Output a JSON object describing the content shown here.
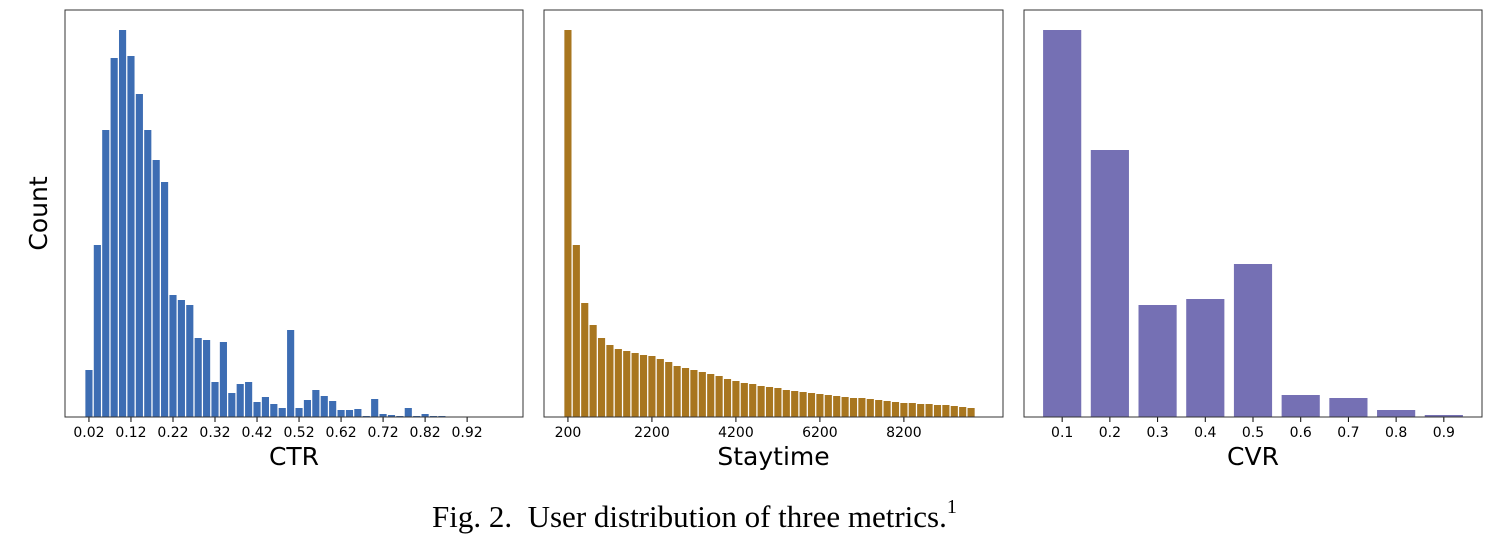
{
  "chart_data": [
    {
      "type": "histogram",
      "xlabel": "CTR",
      "ylabel": "Count",
      "color": "#3d6db3",
      "bins": [
        0.01,
        0.03,
        0.05,
        0.07,
        0.09,
        0.11,
        0.13,
        0.15,
        0.17,
        0.19,
        0.21,
        0.23,
        0.25,
        0.27,
        0.29,
        0.31,
        0.33,
        0.35,
        0.37,
        0.39,
        0.41,
        0.43,
        0.45,
        0.47,
        0.49,
        0.51,
        0.53,
        0.55,
        0.57,
        0.59,
        0.61,
        0.63,
        0.65,
        0.67,
        0.69,
        0.71,
        0.73,
        0.75,
        0.77,
        0.79,
        0.81,
        0.83,
        0.85,
        0.87,
        0.89,
        0.91
      ],
      "values": [
        47,
        172,
        287,
        359,
        387,
        361,
        323,
        287,
        257,
        235,
        122,
        117,
        112,
        79,
        77,
        35,
        75,
        24,
        33,
        35,
        15,
        20,
        13,
        9,
        87,
        9,
        17,
        27,
        21,
        16,
        7,
        7,
        8,
        1,
        18,
        3,
        2,
        1,
        9,
        1,
        3,
        1,
        1,
        0.5,
        0.5
      ],
      "xlim": [
        -0.037,
        1.053
      ],
      "ylim": [
        0,
        407
      ],
      "xticks": [
        0.02,
        0.12,
        0.22,
        0.32,
        0.42,
        0.52,
        0.62,
        0.72,
        0.82,
        0.92
      ]
    },
    {
      "type": "histogram",
      "xlabel": "Staytime",
      "color": "#a8761f",
      "bins": [
        100,
        300,
        500,
        700,
        900,
        1100,
        1300,
        1500,
        1700,
        1900,
        2100,
        2300,
        2500,
        2700,
        2900,
        3100,
        3300,
        3500,
        3700,
        3900,
        4100,
        4300,
        4500,
        4700,
        4900,
        5100,
        5300,
        5500,
        5700,
        5900,
        6100,
        6300,
        6500,
        6700,
        6900,
        7100,
        7300,
        7500,
        7700,
        7900,
        8100,
        8300,
        8500,
        8700,
        8900,
        9100,
        9300,
        9500,
        9700,
        9900
      ],
      "values": [
        387,
        172,
        114,
        92,
        79,
        72,
        68,
        66,
        64,
        62,
        61,
        58,
        55,
        51,
        49,
        47,
        45,
        43,
        41,
        38,
        36,
        34,
        33,
        31,
        30,
        29,
        27,
        26,
        25,
        24,
        23,
        22,
        21,
        20,
        19,
        19,
        18,
        17,
        16,
        15,
        14,
        14,
        13,
        13,
        12,
        12,
        11,
        10,
        9
      ],
      "xlim": [
        -370,
        10560
      ],
      "ylim": [
        0,
        407
      ],
      "xticks": [
        200,
        2200,
        4200,
        6200,
        8200
      ]
    },
    {
      "type": "bar",
      "xlabel": "CVR",
      "color": "#7570b4",
      "categories": [
        "0.1",
        "0.2",
        "0.3",
        "0.4",
        "0.5",
        "0.6",
        "0.7",
        "0.8",
        "0.9"
      ],
      "values": [
        387,
        267,
        112,
        118,
        153,
        22,
        19,
        7,
        2
      ],
      "ylim": [
        0,
        407
      ]
    }
  ],
  "caption": {
    "text": "Fig. 2.  User distribution of three metrics.",
    "footnote_mark": "1"
  }
}
